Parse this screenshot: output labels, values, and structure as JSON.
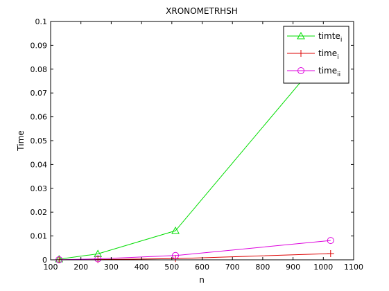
{
  "chart_data": {
    "type": "line",
    "title": "XRONOMETRHSH",
    "xlabel": "n",
    "ylabel": "Time",
    "xlim": [
      100,
      1100
    ],
    "ylim": [
      0,
      0.1
    ],
    "xticks": [
      "100",
      "200",
      "300",
      "400",
      "500",
      "600",
      "700",
      "800",
      "900",
      "1000",
      "1100"
    ],
    "yticks": [
      "0",
      "0.01",
      "0.02",
      "0.03",
      "0.04",
      "0.05",
      "0.06",
      "0.07",
      "0.08",
      "0.09",
      "0.1"
    ],
    "grid": false,
    "legend_position": "top-right",
    "x": [
      128,
      256,
      512,
      1024
    ],
    "series": [
      {
        "name": "timte",
        "name_subscript": "i",
        "color": "#00dd00",
        "marker": "triangle",
        "values": [
          0.0003,
          0.0025,
          0.0122,
          0.0895
        ]
      },
      {
        "name": "time",
        "name_subscript": "i",
        "color": "#dd0000",
        "marker": "plus",
        "values": [
          2e-05,
          0.0001,
          0.0005,
          0.0026
        ]
      },
      {
        "name": "time",
        "name_subscript": "ii",
        "color": "#dd00dd",
        "marker": "circle",
        "values": [
          5e-05,
          0.0004,
          0.0018,
          0.0081
        ]
      }
    ]
  }
}
